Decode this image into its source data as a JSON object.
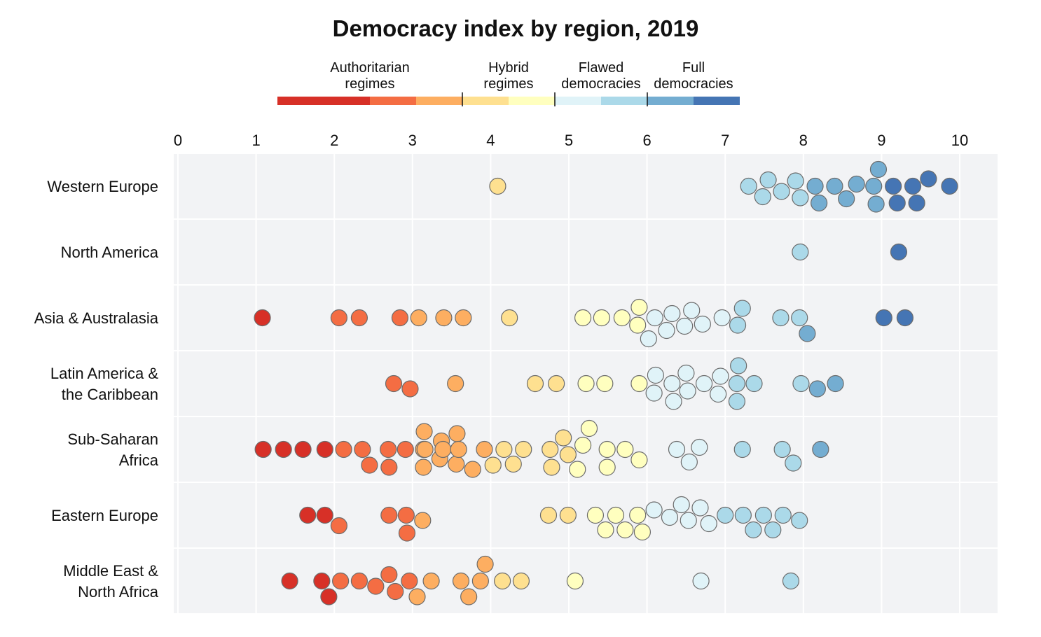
{
  "chart_data": {
    "type": "beeswarm",
    "title": "Democracy index by region, 2019",
    "xlim": [
      0,
      10
    ],
    "x_ticks": [
      "0",
      "1",
      "2",
      "3",
      "4",
      "5",
      "6",
      "7",
      "8",
      "9",
      "10"
    ],
    "legend": {
      "position": "top-center",
      "groups": [
        {
          "lines": [
            "Authoritarian",
            "regimes"
          ],
          "range": [
            0,
            4
          ]
        },
        {
          "lines": [
            "Hybrid",
            "regimes"
          ],
          "range": [
            4,
            6
          ]
        },
        {
          "lines": [
            "Flawed",
            "democracies"
          ],
          "range": [
            6,
            8
          ]
        },
        {
          "lines": [
            "Full",
            "democracies"
          ],
          "range": [
            8,
            10
          ]
        }
      ],
      "bins": [
        {
          "min": 0,
          "max": 2,
          "color": "#d73027"
        },
        {
          "min": 2,
          "max": 3,
          "color": "#f46d43"
        },
        {
          "min": 3,
          "max": 4,
          "color": "#fdae61"
        },
        {
          "min": 4,
          "max": 5,
          "color": "#fee090"
        },
        {
          "min": 5,
          "max": 6,
          "color": "#ffffbf"
        },
        {
          "min": 6,
          "max": 7,
          "color": "#e0f3f8"
        },
        {
          "min": 7,
          "max": 8,
          "color": "#abd9e9"
        },
        {
          "min": 8,
          "max": 9,
          "color": "#74add1"
        },
        {
          "min": 9,
          "max": 10,
          "color": "#4575b4"
        }
      ]
    },
    "regions": [
      {
        "name": "Western Europe",
        "label_lines": [
          "Western Europe"
        ],
        "values": [
          4.09,
          7.3,
          7.48,
          7.55,
          7.72,
          7.9,
          7.96,
          8.15,
          8.2,
          8.4,
          8.55,
          8.68,
          8.9,
          8.93,
          8.96,
          9.15,
          9.2,
          9.4,
          9.45,
          9.6,
          9.87
        ]
      },
      {
        "name": "North America",
        "label_lines": [
          "North America"
        ],
        "values": [
          7.96,
          9.22
        ]
      },
      {
        "name": "Asia & Australasia",
        "label_lines": [
          "Asia & Australasia"
        ],
        "values": [
          1.08,
          2.06,
          2.32,
          2.84,
          3.08,
          3.4,
          3.65,
          4.24,
          5.18,
          5.42,
          5.68,
          5.88,
          5.9,
          6.02,
          6.1,
          6.25,
          6.32,
          6.48,
          6.57,
          6.71,
          6.96,
          7.16,
          7.22,
          7.71,
          7.95,
          8.05,
          9.03,
          9.3
        ]
      },
      {
        "name": "Latin America & the Caribbean",
        "label_lines": [
          "Latin America &",
          "the Caribbean"
        ],
        "values": [
          2.76,
          2.97,
          3.55,
          4.57,
          4.84,
          5.22,
          5.46,
          5.9,
          6.09,
          6.11,
          6.32,
          6.34,
          6.5,
          6.52,
          6.73,
          6.91,
          6.94,
          7.15,
          7.15,
          7.17,
          7.37,
          7.97,
          8.18,
          8.41
        ]
      },
      {
        "name": "Sub-Saharan Africa",
        "label_lines": [
          "Sub-Saharan",
          "Africa"
        ],
        "values": [
          1.09,
          1.35,
          1.6,
          1.88,
          2.12,
          2.36,
          2.45,
          2.69,
          2.7,
          2.91,
          3.14,
          3.14,
          3.15,
          3.16,
          3.35,
          3.37,
          3.39,
          3.56,
          3.57,
          3.59,
          3.77,
          3.92,
          4.03,
          4.17,
          4.29,
          4.42,
          4.76,
          4.78,
          4.93,
          4.99,
          5.11,
          5.18,
          5.26,
          5.49,
          5.49,
          5.72,
          5.9,
          6.38,
          6.54,
          6.67,
          7.22,
          7.73,
          7.87,
          8.22
        ]
      },
      {
        "name": "Eastern Europe",
        "label_lines": [
          "Eastern Europe"
        ],
        "values": [
          1.66,
          1.88,
          2.06,
          2.7,
          2.92,
          2.93,
          3.13,
          4.74,
          4.99,
          5.34,
          5.47,
          5.6,
          5.72,
          5.88,
          5.94,
          6.09,
          6.29,
          6.44,
          6.53,
          6.68,
          6.79,
          7.0,
          7.23,
          7.36,
          7.49,
          7.61,
          7.74,
          7.95
        ]
      },
      {
        "name": "Middle East & North Africa",
        "label_lines": [
          "Middle East &",
          "North Africa"
        ],
        "values": [
          1.43,
          1.84,
          1.93,
          2.08,
          2.32,
          2.53,
          2.7,
          2.78,
          2.96,
          3.06,
          3.24,
          3.62,
          3.72,
          3.87,
          3.93,
          4.15,
          4.39,
          5.08,
          6.69,
          7.84
        ]
      }
    ]
  }
}
